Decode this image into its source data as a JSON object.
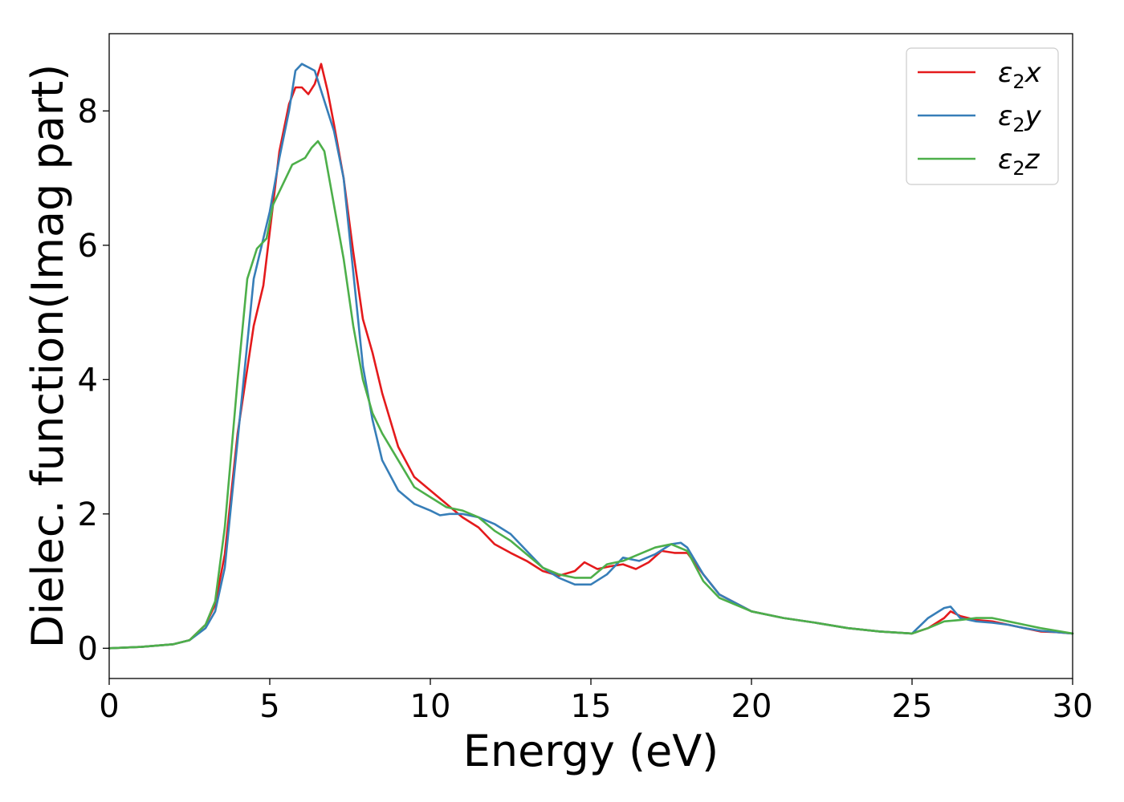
{
  "chart_data": {
    "type": "line",
    "xlabel": "Energy (eV)",
    "ylabel": "Dielec. function(Imag part)",
    "xlim": [
      0,
      30
    ],
    "ylim": [
      -0.45,
      9.15
    ],
    "xticks": [
      0,
      5,
      10,
      15,
      20,
      25,
      30
    ],
    "yticks": [
      0,
      2,
      4,
      6,
      8
    ],
    "grid": false,
    "legend_position": "top-right",
    "series": [
      {
        "name": "ε2x",
        "name_base": "ε",
        "name_sub": "2",
        "name_var": "x",
        "color": "#e41a1c",
        "x": [
          0,
          1,
          2,
          2.5,
          3,
          3.3,
          3.6,
          4,
          4.5,
          4.8,
          5,
          5.3,
          5.6,
          5.8,
          6,
          6.2,
          6.4,
          6.6,
          6.8,
          7,
          7.3,
          7.6,
          7.9,
          8.2,
          8.5,
          9,
          9.5,
          10,
          10.5,
          11,
          11.5,
          12,
          12.5,
          13,
          13.5,
          14,
          14.5,
          14.8,
          15.2,
          15.6,
          16,
          16.4,
          16.8,
          17.2,
          17.6,
          18,
          18.5,
          19,
          20,
          21,
          22,
          23,
          24,
          25,
          25.5,
          26,
          26.2,
          26.5,
          27,
          27.5,
          28,
          28.5,
          29,
          29.5,
          30
        ],
        "y": [
          0,
          0.02,
          0.06,
          0.12,
          0.35,
          0.65,
          1.4,
          3.2,
          4.8,
          5.4,
          6.2,
          7.4,
          8.1,
          8.35,
          8.35,
          8.25,
          8.4,
          8.7,
          8.3,
          7.8,
          7.0,
          5.9,
          4.9,
          4.4,
          3.8,
          3.0,
          2.55,
          2.35,
          2.15,
          1.95,
          1.8,
          1.55,
          1.42,
          1.3,
          1.15,
          1.08,
          1.15,
          1.28,
          1.18,
          1.22,
          1.25,
          1.18,
          1.28,
          1.45,
          1.42,
          1.42,
          1.1,
          0.8,
          0.55,
          0.45,
          0.38,
          0.3,
          0.25,
          0.22,
          0.3,
          0.45,
          0.55,
          0.48,
          0.42,
          0.4,
          0.35,
          0.3,
          0.25,
          0.24,
          0.22
        ]
      },
      {
        "name": "ε2y",
        "name_base": "ε",
        "name_sub": "2",
        "name_var": "y",
        "color": "#377eb8",
        "x": [
          0,
          1,
          2,
          2.5,
          3,
          3.3,
          3.6,
          4,
          4.5,
          5,
          5.3,
          5.6,
          5.8,
          6,
          6.2,
          6.4,
          6.6,
          6.8,
          7,
          7.3,
          7.6,
          7.9,
          8.2,
          8.5,
          9,
          9.5,
          10,
          10.3,
          10.6,
          11,
          11.5,
          12,
          12.5,
          13,
          13.5,
          14,
          14.5,
          15,
          15.5,
          16,
          16.5,
          17,
          17.5,
          17.8,
          18,
          18.5,
          19,
          20,
          21,
          22,
          23,
          24,
          25,
          25.5,
          26,
          26.2,
          26.5,
          27,
          27.5,
          28,
          28.5,
          29,
          29.5,
          30
        ],
        "y": [
          0,
          0.02,
          0.06,
          0.12,
          0.3,
          0.55,
          1.2,
          3.1,
          5.5,
          6.5,
          7.3,
          8.0,
          8.6,
          8.7,
          8.65,
          8.6,
          8.3,
          8.0,
          7.7,
          7.0,
          5.6,
          4.2,
          3.4,
          2.8,
          2.35,
          2.15,
          2.05,
          1.98,
          2.0,
          2.0,
          1.95,
          1.85,
          1.7,
          1.45,
          1.2,
          1.05,
          0.95,
          0.95,
          1.1,
          1.35,
          1.3,
          1.4,
          1.55,
          1.57,
          1.5,
          1.1,
          0.8,
          0.55,
          0.45,
          0.38,
          0.3,
          0.25,
          0.22,
          0.45,
          0.6,
          0.62,
          0.45,
          0.4,
          0.38,
          0.35,
          0.3,
          0.26,
          0.24,
          0.22
        ]
      },
      {
        "name": "ε2z",
        "name_base": "ε",
        "name_sub": "2",
        "name_var": "z",
        "color": "#4daf4a",
        "x": [
          0,
          1,
          2,
          2.5,
          3,
          3.3,
          3.6,
          4,
          4.3,
          4.6,
          4.9,
          5.1,
          5.4,
          5.7,
          5.9,
          6.1,
          6.3,
          6.5,
          6.7,
          7,
          7.3,
          7.6,
          7.9,
          8.2,
          8.5,
          9,
          9.5,
          10,
          10.5,
          11,
          11.5,
          12,
          12.5,
          13,
          13.5,
          14,
          14.5,
          15,
          15.5,
          16,
          16.5,
          17,
          17.5,
          18,
          18.5,
          19,
          20,
          21,
          22,
          23,
          24,
          25,
          25.5,
          26,
          26.5,
          27,
          27.5,
          28,
          28.5,
          29,
          29.5,
          30
        ],
        "y": [
          0,
          0.02,
          0.06,
          0.12,
          0.35,
          0.7,
          1.8,
          4.0,
          5.5,
          5.95,
          6.1,
          6.6,
          6.9,
          7.2,
          7.25,
          7.3,
          7.45,
          7.55,
          7.4,
          6.6,
          5.8,
          4.8,
          4.0,
          3.5,
          3.2,
          2.8,
          2.4,
          2.25,
          2.1,
          2.05,
          1.95,
          1.75,
          1.6,
          1.4,
          1.2,
          1.1,
          1.05,
          1.05,
          1.25,
          1.3,
          1.4,
          1.5,
          1.55,
          1.45,
          1.0,
          0.75,
          0.55,
          0.45,
          0.38,
          0.3,
          0.25,
          0.22,
          0.3,
          0.4,
          0.42,
          0.45,
          0.45,
          0.4,
          0.35,
          0.3,
          0.26,
          0.22
        ]
      }
    ]
  }
}
